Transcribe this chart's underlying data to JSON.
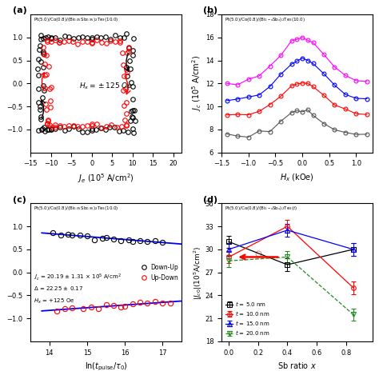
{
  "panel_a": {
    "xlabel": "$J_e$ (10$^5$ A/cm$^2$)",
    "annotation": "$H_x = \\pm 125$ Oe",
    "xlim": [
      -15,
      22
    ],
    "ylim": [
      -1.5,
      1.5
    ],
    "xticks": [
      -15,
      -10,
      -5,
      0,
      5,
      10,
      15,
      20
    ],
    "yticks": [
      -1.0,
      -0.5,
      0.0,
      0.5,
      1.0
    ]
  },
  "panel_b": {
    "xlabel": "$H_x$ (kOe)",
    "ylabel": "$J_c$ (10$^5$ A/cm$^2$)",
    "xlim": [
      -1.5,
      1.3
    ],
    "ylim": [
      6,
      18
    ],
    "xticks": [
      -1.5,
      -1.0,
      -0.5,
      0.0,
      0.5,
      1.0
    ],
    "yticks": [
      6,
      8,
      10,
      12,
      14,
      16,
      18
    ]
  },
  "panel_c": {
    "xlabel": "ln($t_{\\mathrm{pulse}}/\\tau_0$)",
    "xlim": [
      13.5,
      17.5
    ],
    "ylim": [
      -1.5,
      1.5
    ],
    "xticks": [
      14,
      15,
      16,
      17
    ],
    "yticks": [
      -1.0,
      -0.5,
      0.0,
      0.5,
      1.0
    ]
  },
  "panel_d": {
    "xlabel": "Sb ratio $x$",
    "ylabel": "|$J_{c0}$|(10$^5$A/cm$^2$)",
    "xlim": [
      -0.05,
      0.98
    ],
    "ylim": [
      18,
      36
    ],
    "xticks": [
      0.0,
      0.2,
      0.4,
      0.6,
      0.8
    ],
    "yticks": [
      18,
      21,
      24,
      27,
      30,
      33,
      36
    ]
  }
}
